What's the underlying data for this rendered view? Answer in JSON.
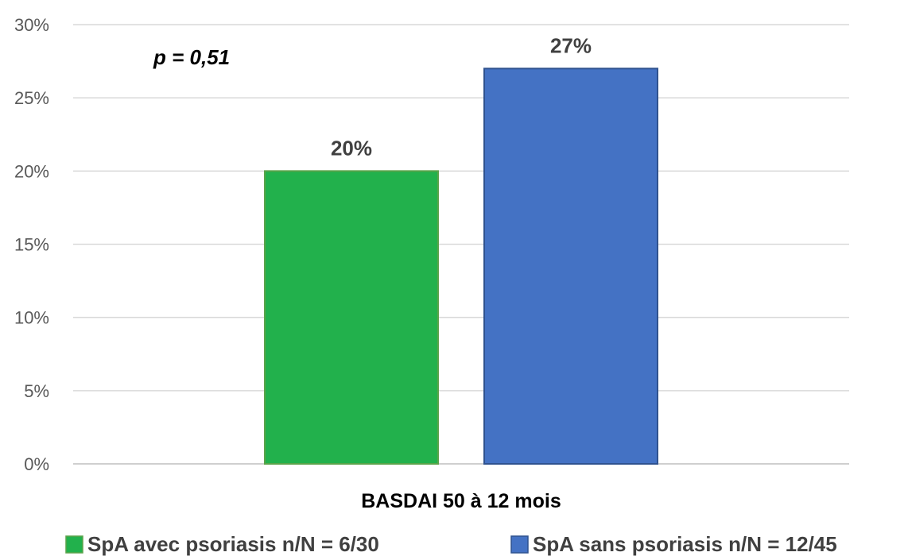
{
  "chart_data": {
    "type": "bar",
    "categories": [
      "BASDAI 50 à 12 mois"
    ],
    "series": [
      {
        "name": "SpA avec psoriasis  n/N = 6/30",
        "values": [
          20
        ],
        "color": "#22b14c",
        "data_label": "20%"
      },
      {
        "name": "SpA sans psoriasis n/N = 12/45",
        "values": [
          27
        ],
        "color": "#4472c4",
        "data_label": "27%"
      }
    ],
    "y_ticks": [
      "0%",
      "5%",
      "10%",
      "15%",
      "20%",
      "25%",
      "30%"
    ],
    "ylim": [
      0,
      30
    ],
    "ylabel": "",
    "xlabel": "",
    "annotation": "p = 0,51",
    "grid": true,
    "legend_position": "bottom"
  }
}
